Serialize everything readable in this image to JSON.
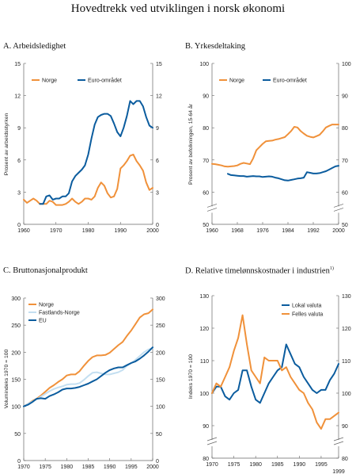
{
  "page_title": "Hovedtrekk ved utviklingen i norsk økonomi",
  "colors": {
    "orange": "#F0913A",
    "blue": "#0B5C9E",
    "lightblue": "#C4DFF1",
    "axis": "#666666"
  },
  "chart_data": [
    {
      "id": "A",
      "type": "line",
      "title": "A. Arbeidsledighet",
      "ylabel": "Prosent av arbeidsstyrken",
      "xlim": [
        1960,
        2000
      ],
      "ylim": [
        0,
        15
      ],
      "x_ticks": [
        1960,
        1970,
        1980,
        1990,
        2000
      ],
      "y_ticks": [
        0,
        3,
        6,
        9,
        12,
        15
      ],
      "legend": "top-left",
      "series": [
        {
          "name": "Norge",
          "color": "#F0913A",
          "x": [
            1960,
            1961,
            1962,
            1963,
            1964,
            1965,
            1966,
            1967,
            1968,
            1969,
            1970,
            1971,
            1972,
            1973,
            1974,
            1975,
            1976,
            1977,
            1978,
            1979,
            1980,
            1981,
            1982,
            1983,
            1984,
            1985,
            1986,
            1987,
            1988,
            1989,
            1990,
            1991,
            1992,
            1993,
            1994,
            1995,
            1996,
            1997,
            1998,
            1999,
            2000
          ],
          "y": [
            2.3,
            2.0,
            2.2,
            2.4,
            2.2,
            1.9,
            1.9,
            1.9,
            2.2,
            2.1,
            1.8,
            1.8,
            1.8,
            1.9,
            2.1,
            2.4,
            2.1,
            1.9,
            2.1,
            2.4,
            2.4,
            2.3,
            2.6,
            3.4,
            3.9,
            3.6,
            2.9,
            2.5,
            2.6,
            3.3,
            5.2,
            5.5,
            5.9,
            6.4,
            6.5,
            5.9,
            5.5,
            5.0,
            3.9,
            3.2,
            3.4
          ]
        },
        {
          "name": "Euro-området",
          "color": "#0B5C9E",
          "x": [
            1965,
            1966,
            1967,
            1968,
            1969,
            1970,
            1971,
            1972,
            1973,
            1974,
            1975,
            1976,
            1977,
            1978,
            1979,
            1980,
            1981,
            1982,
            1983,
            1984,
            1985,
            1986,
            1987,
            1988,
            1989,
            1990,
            1991,
            1992,
            1993,
            1994,
            1995,
            1996,
            1997,
            1998,
            1999,
            2000
          ],
          "y": [
            1.9,
            1.9,
            2.6,
            2.7,
            2.3,
            2.4,
            2.4,
            2.6,
            2.6,
            2.9,
            4.0,
            4.5,
            4.8,
            5.1,
            5.5,
            6.5,
            8.0,
            9.3,
            10.0,
            10.2,
            10.3,
            10.3,
            10.1,
            9.4,
            8.6,
            8.2,
            9.0,
            10.1,
            11.5,
            11.2,
            11.5,
            11.5,
            11.0,
            10.0,
            9.2,
            9.0
          ]
        }
      ]
    },
    {
      "id": "B",
      "type": "line",
      "title": "B. Yrkesdeltaking",
      "ylabel": "Prosent av befolkningen, 15-64 år",
      "xlim": [
        1960,
        2000
      ],
      "ylim": [
        50,
        100
      ],
      "x_ticks": [
        1960,
        1968,
        1976,
        1984,
        1992,
        2000
      ],
      "y_ticks": [
        50,
        60,
        70,
        80,
        90,
        100
      ],
      "legend": "top-left",
      "series": [
        {
          "name": "Norge",
          "color": "#F0913A",
          "x": [
            1960,
            1961,
            1962,
            1963,
            1964,
            1965,
            1966,
            1967,
            1968,
            1969,
            1970,
            1971,
            1972,
            1973,
            1974,
            1975,
            1976,
            1977,
            1978,
            1979,
            1980,
            1981,
            1982,
            1983,
            1984,
            1985,
            1986,
            1987,
            1988,
            1989,
            1990,
            1991,
            1992,
            1993,
            1994,
            1995,
            1996,
            1997,
            1998,
            1999,
            2000
          ],
          "y": [
            68.8,
            68.7,
            68.5,
            68.3,
            68.0,
            67.9,
            68.0,
            68.1,
            68.3,
            68.8,
            69.1,
            68.9,
            68.7,
            70.5,
            73.0,
            74.0,
            75.0,
            75.8,
            75.9,
            76.0,
            76.3,
            76.5,
            76.8,
            77.1,
            78.0,
            79.0,
            80.3,
            80.1,
            79.0,
            78.2,
            77.5,
            77.2,
            77.0,
            77.4,
            77.8,
            78.9,
            80.1,
            80.6,
            81.0,
            81.0,
            81.0
          ]
        },
        {
          "name": "Euro-området",
          "color": "#0B5C9E",
          "x": [
            1965,
            1966,
            1967,
            1968,
            1969,
            1970,
            1971,
            1972,
            1973,
            1974,
            1975,
            1976,
            1977,
            1978,
            1979,
            1980,
            1981,
            1982,
            1983,
            1984,
            1985,
            1986,
            1987,
            1988,
            1989,
            1990,
            1991,
            1992,
            1993,
            1994,
            1995,
            1996,
            1997,
            1998,
            1999,
            2000
          ],
          "y": [
            65.7,
            65.3,
            65.2,
            65.1,
            65.0,
            65.0,
            64.8,
            64.9,
            65.0,
            64.9,
            64.9,
            64.7,
            64.8,
            64.9,
            64.8,
            64.5,
            64.3,
            64.0,
            63.7,
            63.6,
            63.8,
            64.0,
            64.2,
            64.3,
            64.5,
            66.2,
            66.0,
            65.8,
            65.8,
            65.9,
            66.2,
            66.5,
            67.0,
            67.5,
            68.0,
            68.2
          ]
        }
      ]
    },
    {
      "id": "C",
      "type": "line",
      "title": "C. Bruttonasjonalprodukt",
      "ylabel": "Volumindeks 1970 = 100",
      "xlim": [
        1970,
        2000
      ],
      "ylim": [
        0,
        300
      ],
      "x_ticks": [
        1970,
        1975,
        1980,
        1985,
        1990,
        1995,
        2000
      ],
      "y_ticks": [
        0,
        50,
        100,
        150,
        200,
        250,
        300
      ],
      "legend": "top-left",
      "series": [
        {
          "name": "Norge",
          "color": "#F0913A",
          "x": [
            1970,
            1971,
            1972,
            1973,
            1974,
            1975,
            1976,
            1977,
            1978,
            1979,
            1980,
            1981,
            1982,
            1983,
            1984,
            1985,
            1986,
            1987,
            1988,
            1989,
            1990,
            1991,
            1992,
            1993,
            1994,
            1995,
            1996,
            1997,
            1998,
            1999,
            2000
          ],
          "y": [
            100,
            105,
            110,
            114,
            120,
            127,
            134,
            139,
            145,
            150,
            157,
            159,
            159,
            165,
            175,
            184,
            191,
            194,
            194,
            195,
            199,
            206,
            213,
            219,
            230,
            240,
            252,
            264,
            270,
            272,
            279
          ]
        },
        {
          "name": "Fastlands-Norge",
          "color": "#C4DFF1",
          "x": [
            1970,
            1971,
            1972,
            1973,
            1974,
            1975,
            1976,
            1977,
            1978,
            1979,
            1980,
            1981,
            1982,
            1983,
            1984,
            1985,
            1986,
            1987,
            1988,
            1989,
            1990,
            1991,
            1992,
            1993,
            1994,
            1995,
            1996,
            1997,
            1998,
            1999,
            2000
          ],
          "y": [
            100,
            105,
            109,
            113,
            118,
            123,
            128,
            132,
            135,
            137,
            140,
            141,
            141,
            143,
            149,
            156,
            162,
            163,
            161,
            159,
            159,
            161,
            163,
            167,
            175,
            180,
            186,
            193,
            200,
            205,
            208
          ]
        },
        {
          "name": "EU",
          "color": "#0B5C9E",
          "x": [
            1970,
            1971,
            1972,
            1973,
            1974,
            1975,
            1976,
            1977,
            1978,
            1979,
            1980,
            1981,
            1982,
            1983,
            1984,
            1985,
            1986,
            1987,
            1988,
            1989,
            1990,
            1991,
            1992,
            1993,
            1994,
            1995,
            1996,
            1997,
            1998,
            1999,
            2000
          ],
          "y": [
            100,
            103,
            108,
            114,
            115,
            114,
            119,
            122,
            126,
            131,
            133,
            133,
            134,
            136,
            139,
            142,
            146,
            150,
            156,
            162,
            167,
            170,
            172,
            172,
            176,
            180,
            183,
            188,
            194,
            201,
            209
          ]
        }
      ]
    },
    {
      "id": "D",
      "type": "line",
      "title": "D. Relative timelønnskostnader i industrien",
      "title_sup": "1)",
      "ylabel": "Indeks 1970 = 100",
      "xlim": [
        1970,
        1999
      ],
      "ylim": [
        80,
        130
      ],
      "x_ticks": [
        1970,
        1975,
        1980,
        1985,
        1990,
        1995
      ],
      "x_end_label": "1999",
      "y_ticks": [
        80,
        90,
        100,
        110,
        120,
        130
      ],
      "legend": "top-right",
      "series": [
        {
          "name": "Lokal valuta",
          "color": "#0B5C9E",
          "x": [
            1970,
            1971,
            1972,
            1973,
            1974,
            1975,
            1976,
            1977,
            1978,
            1979,
            1980,
            1981,
            1982,
            1983,
            1984,
            1985,
            1986,
            1987,
            1988,
            1989,
            1990,
            1991,
            1992,
            1993,
            1994,
            1995,
            1996,
            1997,
            1998,
            1999
          ],
          "y": [
            100,
            102,
            102,
            99,
            98,
            100,
            101,
            107,
            107,
            102,
            98,
            97,
            100,
            103,
            105,
            107,
            108,
            115,
            112,
            109,
            108,
            105,
            103,
            101,
            100,
            101,
            101,
            104,
            106,
            109
          ]
        },
        {
          "name": "Felles valuta",
          "color": "#F0913A",
          "x": [
            1970,
            1971,
            1972,
            1973,
            1974,
            1975,
            1976,
            1977,
            1978,
            1979,
            1980,
            1981,
            1982,
            1983,
            1984,
            1985,
            1986,
            1987,
            1988,
            1989,
            1990,
            1991,
            1992,
            1993,
            1994,
            1995,
            1996,
            1997,
            1998,
            1999
          ],
          "y": [
            100,
            103,
            102,
            105,
            108,
            113,
            117,
            124,
            115,
            107,
            105,
            103,
            111,
            110,
            110,
            110,
            107,
            108,
            105,
            103,
            101,
            100,
            97,
            95,
            91,
            89,
            92,
            92,
            93,
            94
          ]
        }
      ]
    }
  ]
}
